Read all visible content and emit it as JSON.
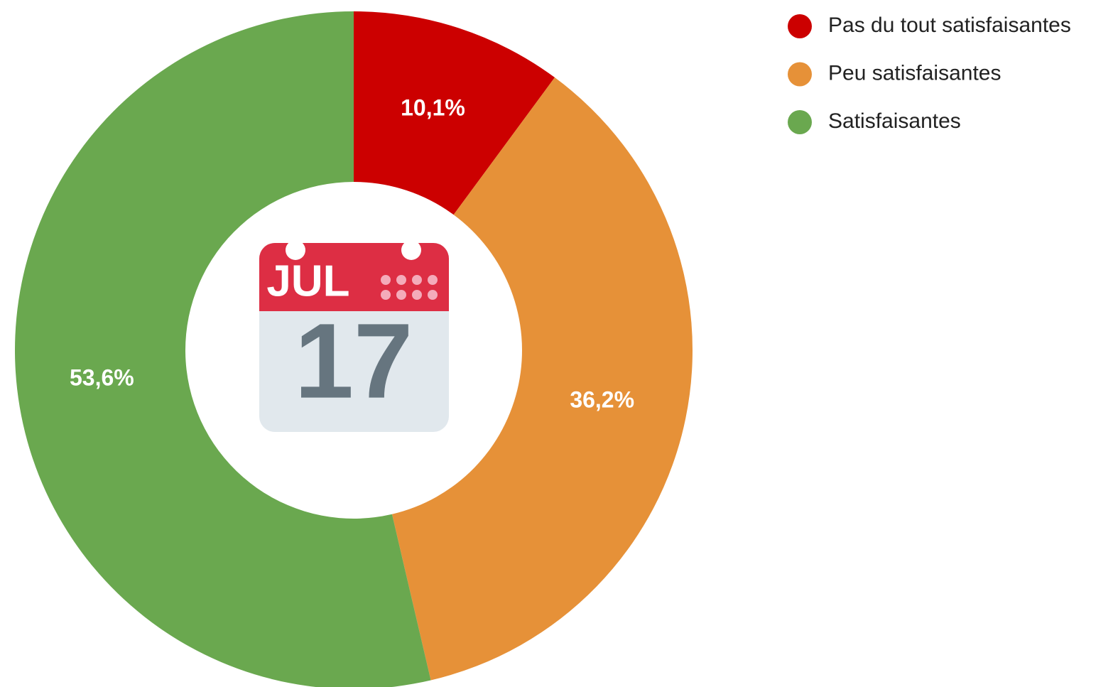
{
  "chart_data": {
    "type": "donut",
    "categories": [
      "Pas du tout satisfaisantes",
      "Peu satisfaisantes",
      "Satisfaisantes"
    ],
    "values": [
      10.1,
      36.2,
      53.6
    ],
    "value_labels": [
      "10,1%",
      "36,2%",
      "53,6%"
    ],
    "colors": [
      "#cc0000",
      "#e69138",
      "#6aa84f"
    ],
    "legend": "top-right",
    "center_icon": {
      "month": "JUL",
      "day": "17"
    }
  }
}
